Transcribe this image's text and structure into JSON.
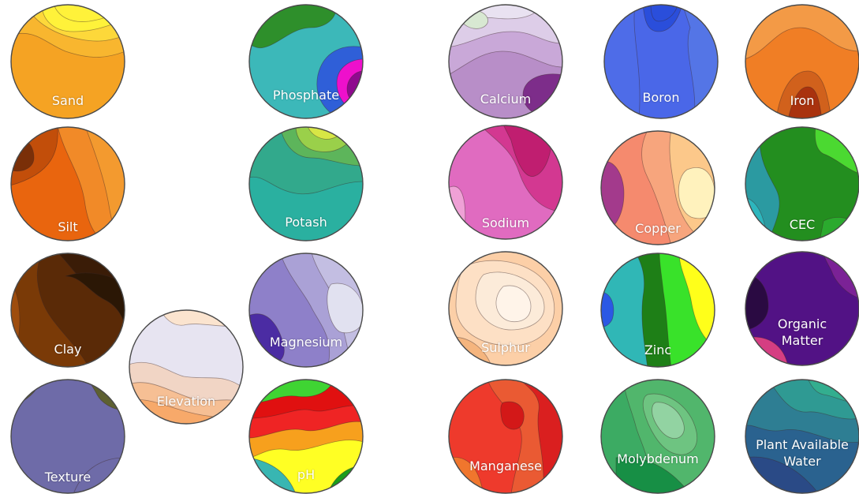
{
  "maps": [
    {
      "id": "sand",
      "label": [
        "Sand"
      ],
      "colors": [
        "#F5A323",
        "#F8B62F",
        "#FDD83A",
        "#FFF23A",
        "#FFF23A"
      ]
    },
    {
      "id": "phosphate",
      "label": [
        "Phosphate"
      ],
      "colors": [
        "#3FB8B6",
        "#3CB8B9",
        "#2E8F2B",
        "#2F5FD8",
        "#EE10CC",
        "#8E0A8E"
      ]
    },
    {
      "id": "calcium",
      "label": [
        "Calcium"
      ],
      "colors": [
        "#B88EC8",
        "#C9A8D8",
        "#DDCDE8",
        "#E9E2F1",
        "#D8E8D2",
        "#7D2D8A"
      ]
    },
    {
      "id": "boron",
      "label": [
        "Boron"
      ],
      "colors": [
        "#4A67E8",
        "#4E6CE8",
        "#5475E6",
        "#2A4EDB",
        "#2A4EDB"
      ]
    },
    {
      "id": "iron",
      "label": [
        "Iron"
      ],
      "colors": [
        "#F07E25",
        "#F39A46",
        "#F7AF67",
        "#D1611C",
        "#A9320E"
      ]
    },
    {
      "id": "silt",
      "label": [
        "Silt"
      ],
      "colors": [
        "#E9650E",
        "#F18A28",
        "#F39A2F",
        "#C24E0A",
        "#7A2F08"
      ]
    },
    {
      "id": "potash",
      "label": [
        "Potash"
      ],
      "colors": [
        "#2AB0A0",
        "#32A98C",
        "#5DB55B",
        "#9AD04A",
        "#D7E645"
      ]
    },
    {
      "id": "sodium",
      "label": [
        "Sodium"
      ],
      "colors": [
        "#E85AB0",
        "#E06BC0",
        "#D33891",
        "#C01E70",
        "#EFA1D6"
      ]
    },
    {
      "id": "copper",
      "label": [
        "Copper"
      ],
      "colors": [
        "#F58A6E",
        "#F7A57D",
        "#FCC88A",
        "#FFF2BD",
        "#A33A8C"
      ]
    },
    {
      "id": "cec",
      "label": [
        "CEC"
      ],
      "colors": [
        "#2B9AA1",
        "#238E1F",
        "#2DB6BD",
        "#4BD931",
        "#2BAA2E"
      ]
    },
    {
      "id": "clay",
      "label": [
        "Clay"
      ],
      "colors": [
        "#7A3A07",
        "#5A2A07",
        "#3A1C07",
        "#2B1705",
        "#9E4D0E"
      ]
    },
    {
      "id": "elevation",
      "label": [
        "Elevation"
      ],
      "colors": [
        "#E7E4F1",
        "#F1D5C5",
        "#F6BF94",
        "#F7A96A",
        "#FBE4CF"
      ]
    },
    {
      "id": "magnesium",
      "label": [
        "Magnesium"
      ],
      "colors": [
        "#8E80C9",
        "#AAA1D6",
        "#C3BEE2",
        "#E1E1F0",
        "#4B2CA3"
      ]
    },
    {
      "id": "sulphur",
      "label": [
        "Sulphur"
      ],
      "colors": [
        "#FCCFA7",
        "#FDE0C5",
        "#FCEBD9",
        "#FFF4E9",
        "#F5B57E"
      ]
    },
    {
      "id": "zinc",
      "label": [
        "Zinc"
      ],
      "colors": [
        "#30B7B6",
        "#1E7F17",
        "#39E22A",
        "#FFFF1A",
        "#2B58E4"
      ]
    },
    {
      "id": "organic-matter",
      "label": [
        "Organic",
        "Matter"
      ],
      "colors": [
        "#6B1C8E",
        "#521285",
        "#2A0A42",
        "#D53E82",
        "#7B2296"
      ]
    },
    {
      "id": "texture",
      "label": [
        "Texture"
      ],
      "colors": [
        "#6E6BA8",
        "#5D6031",
        "#6E6BA8",
        "#5D6031"
      ]
    },
    {
      "id": "ph",
      "label": [
        "pH"
      ],
      "colors": [
        "#FFFF24",
        "#F7A01D",
        "#EF2424",
        "#E01010",
        "#3FD433",
        "#38B6B2",
        "#1B9D1B"
      ]
    },
    {
      "id": "manganese",
      "label": [
        "Manganese"
      ],
      "colors": [
        "#EE3A2C",
        "#EA5A33",
        "#DA1F1F",
        "#D31818",
        "#F0762D"
      ]
    },
    {
      "id": "molybdenum",
      "label": [
        "Molybdenum"
      ],
      "colors": [
        "#3CAB63",
        "#51B66C",
        "#6EC481",
        "#92D3A2",
        "#178F45"
      ]
    },
    {
      "id": "plant-available-water",
      "label": [
        "Plant Available",
        "Water"
      ],
      "colors": [
        "#2A628F",
        "#2E7E93",
        "#2F9A93",
        "#33AE8F",
        "#2A4A86"
      ]
    }
  ]
}
